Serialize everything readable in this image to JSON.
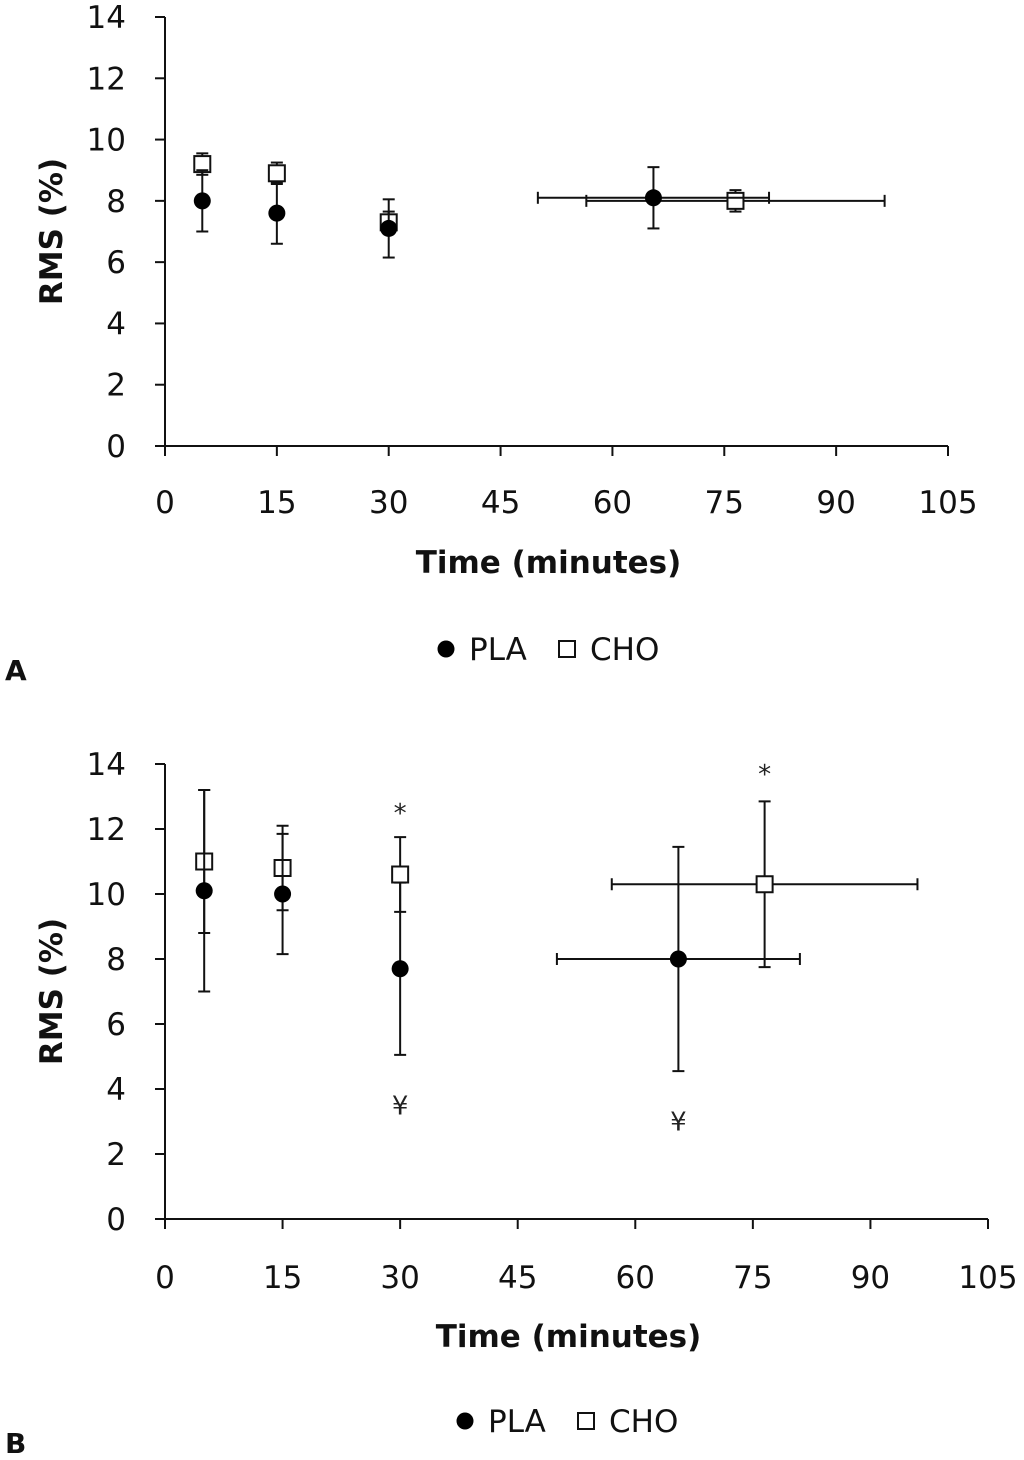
{
  "chart_data": [
    {
      "type": "scatter",
      "panel_label": "A",
      "xlabel": "Time (minutes)",
      "ylabel": "RMS (%)",
      "xlim": [
        0,
        105
      ],
      "ylim": [
        0,
        14
      ],
      "xticks": [
        0,
        15,
        30,
        45,
        60,
        75,
        90,
        105
      ],
      "yticks": [
        0,
        2,
        4,
        6,
        8,
        10,
        12,
        14
      ],
      "grid": false,
      "legend_position": "bottom-center",
      "series": [
        {
          "name": "PLA",
          "marker": "filled-circle",
          "points": [
            {
              "x": 5,
              "y": 8.0,
              "yerr": 1.0
            },
            {
              "x": 15,
              "y": 7.6,
              "yerr": 1.0
            },
            {
              "x": 30,
              "y": 7.1,
              "yerr": 0.95
            },
            {
              "x": 65.5,
              "y": 8.1,
              "yerr": 1.0,
              "xerr": 15.5
            }
          ]
        },
        {
          "name": "CHO",
          "marker": "open-square",
          "points": [
            {
              "x": 5,
              "y": 9.2,
              "yerr": 0.35
            },
            {
              "x": 15,
              "y": 8.9,
              "yerr": 0.35
            },
            {
              "x": 30,
              "y": 7.3,
              "yerr": 0.35
            },
            {
              "x": 76.5,
              "y": 8.0,
              "yerr": 0.35,
              "xerr": 20
            }
          ]
        }
      ],
      "annotations": []
    },
    {
      "type": "scatter",
      "panel_label": "B",
      "xlabel": "Time (minutes)",
      "ylabel": "RMS (%)",
      "xlim": [
        0,
        105
      ],
      "ylim": [
        0,
        14
      ],
      "xticks": [
        0,
        15,
        30,
        45,
        60,
        75,
        90,
        105
      ],
      "yticks": [
        0,
        2,
        4,
        6,
        8,
        10,
        12,
        14
      ],
      "grid": false,
      "legend_position": "bottom-center",
      "series": [
        {
          "name": "PLA",
          "marker": "filled-circle",
          "points": [
            {
              "x": 5,
              "y": 10.1,
              "yerr": 3.1
            },
            {
              "x": 15,
              "y": 10.0,
              "yerr": 1.85
            },
            {
              "x": 30,
              "y": 7.7,
              "yerr": 2.65
            },
            {
              "x": 65.5,
              "y": 8.0,
              "yerr": 3.45,
              "xerr": 15.5
            }
          ]
        },
        {
          "name": "CHO",
          "marker": "open-square",
          "points": [
            {
              "x": 5,
              "y": 11.0,
              "yerr": 2.2
            },
            {
              "x": 15,
              "y": 10.8,
              "yerr": 1.3
            },
            {
              "x": 30,
              "y": 10.6,
              "yerr": 1.15
            },
            {
              "x": 76.5,
              "y": 10.3,
              "yerr": 2.55,
              "xerr": 19.5
            }
          ]
        }
      ],
      "annotations": [
        {
          "text": "*",
          "x": 30,
          "y": 12.5
        },
        {
          "text": "¥",
          "x": 30,
          "y": 3.5
        },
        {
          "text": "*",
          "x": 76.5,
          "y": 13.7
        },
        {
          "text": "¥",
          "x": 65.5,
          "y": 3.0
        }
      ]
    }
  ],
  "legend": {
    "pla_label": "PLA",
    "cho_label": "CHO"
  },
  "colors": {
    "axis": "#111111",
    "marker_fill": "#000000",
    "marker_open_fill": "#ffffff",
    "annotation": "#222222"
  }
}
